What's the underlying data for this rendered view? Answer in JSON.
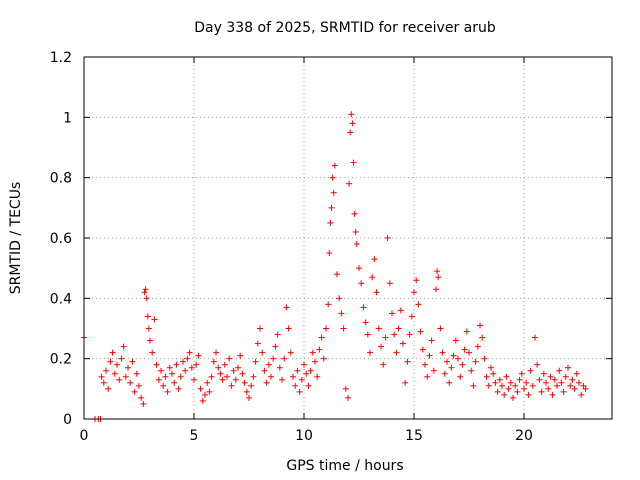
{
  "chart_data": {
    "type": "scatter",
    "title": "Day 338 of 2025, SRMTID for receiver arub",
    "xlabel": "GPS time / hours",
    "ylabel": "SRMTID / TECUs",
    "xlim": [
      0,
      24
    ],
    "ylim": [
      0,
      1.2
    ],
    "xticks": [
      0,
      5,
      10,
      15,
      20
    ],
    "xtick_labels": [
      "0",
      "5",
      "10",
      "15",
      "20"
    ],
    "yticks": [
      0,
      0.2,
      0.4,
      0.6,
      0.8,
      1.0,
      1.2
    ],
    "ytick_labels": [
      "0",
      "0.2",
      "0.4",
      "0.6",
      "0.8",
      "1",
      "1.2"
    ],
    "grid": true,
    "marker": "+",
    "color": "#ff0000",
    "series": [
      {
        "name": "SRMTID",
        "points": [
          [
            0.0,
            0.27
          ],
          [
            0.5,
            0.0
          ],
          [
            0.65,
            0.0
          ],
          [
            0.75,
            0.0
          ],
          [
            0.8,
            0.14
          ],
          [
            0.9,
            0.12
          ],
          [
            1.0,
            0.16
          ],
          [
            1.1,
            0.1
          ],
          [
            1.2,
            0.19
          ],
          [
            1.3,
            0.22
          ],
          [
            1.4,
            0.15
          ],
          [
            1.5,
            0.18
          ],
          [
            1.6,
            0.13
          ],
          [
            1.7,
            0.2
          ],
          [
            1.8,
            0.24
          ],
          [
            1.9,
            0.14
          ],
          [
            2.0,
            0.17
          ],
          [
            2.1,
            0.12
          ],
          [
            2.2,
            0.19
          ],
          [
            2.3,
            0.09
          ],
          [
            2.4,
            0.15
          ],
          [
            2.5,
            0.11
          ],
          [
            2.6,
            0.07
          ],
          [
            2.7,
            0.05
          ],
          [
            2.75,
            0.42
          ],
          [
            2.8,
            0.43
          ],
          [
            2.85,
            0.4
          ],
          [
            2.9,
            0.34
          ],
          [
            2.95,
            0.3
          ],
          [
            3.0,
            0.26
          ],
          [
            3.1,
            0.22
          ],
          [
            3.2,
            0.33
          ],
          [
            3.3,
            0.18
          ],
          [
            3.4,
            0.13
          ],
          [
            3.5,
            0.16
          ],
          [
            3.6,
            0.11
          ],
          [
            3.7,
            0.14
          ],
          [
            3.8,
            0.09
          ],
          [
            3.9,
            0.17
          ],
          [
            4.0,
            0.15
          ],
          [
            4.1,
            0.12
          ],
          [
            4.2,
            0.18
          ],
          [
            4.3,
            0.1
          ],
          [
            4.4,
            0.14
          ],
          [
            4.5,
            0.19
          ],
          [
            4.6,
            0.16
          ],
          [
            4.7,
            0.2
          ],
          [
            4.8,
            0.22
          ],
          [
            4.9,
            0.17
          ],
          [
            5.0,
            0.13
          ],
          [
            5.1,
            0.18
          ],
          [
            5.2,
            0.21
          ],
          [
            5.3,
            0.1
          ],
          [
            5.4,
            0.06
          ],
          [
            5.5,
            0.08
          ],
          [
            5.6,
            0.12
          ],
          [
            5.7,
            0.09
          ],
          [
            5.8,
            0.14
          ],
          [
            5.9,
            0.19
          ],
          [
            6.0,
            0.22
          ],
          [
            6.1,
            0.17
          ],
          [
            6.2,
            0.15
          ],
          [
            6.3,
            0.13
          ],
          [
            6.4,
            0.18
          ],
          [
            6.5,
            0.14
          ],
          [
            6.6,
            0.2
          ],
          [
            6.7,
            0.11
          ],
          [
            6.8,
            0.16
          ],
          [
            6.9,
            0.13
          ],
          [
            7.0,
            0.17
          ],
          [
            7.1,
            0.21
          ],
          [
            7.2,
            0.15
          ],
          [
            7.3,
            0.12
          ],
          [
            7.4,
            0.09
          ],
          [
            7.5,
            0.07
          ],
          [
            7.6,
            0.11
          ],
          [
            7.7,
            0.14
          ],
          [
            7.8,
            0.19
          ],
          [
            7.9,
            0.25
          ],
          [
            8.0,
            0.3
          ],
          [
            8.1,
            0.22
          ],
          [
            8.2,
            0.16
          ],
          [
            8.3,
            0.12
          ],
          [
            8.4,
            0.18
          ],
          [
            8.5,
            0.14
          ],
          [
            8.6,
            0.2
          ],
          [
            8.7,
            0.24
          ],
          [
            8.8,
            0.28
          ],
          [
            8.9,
            0.17
          ],
          [
            9.0,
            0.13
          ],
          [
            9.1,
            0.2
          ],
          [
            9.2,
            0.37
          ],
          [
            9.3,
            0.3
          ],
          [
            9.4,
            0.22
          ],
          [
            9.5,
            0.14
          ],
          [
            9.6,
            0.11
          ],
          [
            9.7,
            0.16
          ],
          [
            9.8,
            0.09
          ],
          [
            9.9,
            0.13
          ],
          [
            10.0,
            0.18
          ],
          [
            10.1,
            0.15
          ],
          [
            10.2,
            0.11
          ],
          [
            10.3,
            0.16
          ],
          [
            10.4,
            0.22
          ],
          [
            10.5,
            0.19
          ],
          [
            10.6,
            0.14
          ],
          [
            10.7,
            0.23
          ],
          [
            10.8,
            0.27
          ],
          [
            10.9,
            0.2
          ],
          [
            11.0,
            0.3
          ],
          [
            11.1,
            0.38
          ],
          [
            11.15,
            0.55
          ],
          [
            11.2,
            0.65
          ],
          [
            11.25,
            0.7
          ],
          [
            11.3,
            0.8
          ],
          [
            11.35,
            0.75
          ],
          [
            11.4,
            0.84
          ],
          [
            11.5,
            0.48
          ],
          [
            11.6,
            0.4
          ],
          [
            11.7,
            0.35
          ],
          [
            11.8,
            0.3
          ],
          [
            11.9,
            0.1
          ],
          [
            12.0,
            0.07
          ],
          [
            12.05,
            0.78
          ],
          [
            12.1,
            0.95
          ],
          [
            12.15,
            1.01
          ],
          [
            12.2,
            0.98
          ],
          [
            12.25,
            0.85
          ],
          [
            12.3,
            0.68
          ],
          [
            12.35,
            0.62
          ],
          [
            12.4,
            0.58
          ],
          [
            12.5,
            0.5
          ],
          [
            12.6,
            0.45
          ],
          [
            12.7,
            0.37
          ],
          [
            12.8,
            0.32
          ],
          [
            12.9,
            0.28
          ],
          [
            13.0,
            0.22
          ],
          [
            13.1,
            0.47
          ],
          [
            13.2,
            0.53
          ],
          [
            13.3,
            0.42
          ],
          [
            13.4,
            0.3
          ],
          [
            13.5,
            0.24
          ],
          [
            13.6,
            0.18
          ],
          [
            13.7,
            0.27
          ],
          [
            13.8,
            0.6
          ],
          [
            13.9,
            0.45
          ],
          [
            14.0,
            0.35
          ],
          [
            14.1,
            0.28
          ],
          [
            14.2,
            0.22
          ],
          [
            14.3,
            0.3
          ],
          [
            14.4,
            0.36
          ],
          [
            14.5,
            0.25
          ],
          [
            14.6,
            0.12
          ],
          [
            14.7,
            0.19
          ],
          [
            14.8,
            0.28
          ],
          [
            14.9,
            0.34
          ],
          [
            15.0,
            0.42
          ],
          [
            15.1,
            0.46
          ],
          [
            15.2,
            0.38
          ],
          [
            15.3,
            0.29
          ],
          [
            15.4,
            0.23
          ],
          [
            15.5,
            0.18
          ],
          [
            15.6,
            0.14
          ],
          [
            15.7,
            0.21
          ],
          [
            15.8,
            0.26
          ],
          [
            15.9,
            0.16
          ],
          [
            16.0,
            0.43
          ],
          [
            16.05,
            0.49
          ],
          [
            16.1,
            0.47
          ],
          [
            16.2,
            0.3
          ],
          [
            16.3,
            0.22
          ],
          [
            16.4,
            0.15
          ],
          [
            16.5,
            0.19
          ],
          [
            16.6,
            0.12
          ],
          [
            16.7,
            0.17
          ],
          [
            16.8,
            0.21
          ],
          [
            16.9,
            0.26
          ],
          [
            17.0,
            0.2
          ],
          [
            17.1,
            0.14
          ],
          [
            17.2,
            0.18
          ],
          [
            17.3,
            0.23
          ],
          [
            17.4,
            0.29
          ],
          [
            17.5,
            0.22
          ],
          [
            17.6,
            0.16
          ],
          [
            17.7,
            0.11
          ],
          [
            17.8,
            0.19
          ],
          [
            17.9,
            0.24
          ],
          [
            18.0,
            0.31
          ],
          [
            18.1,
            0.27
          ],
          [
            18.2,
            0.2
          ],
          [
            18.3,
            0.14
          ],
          [
            18.4,
            0.11
          ],
          [
            18.5,
            0.17
          ],
          [
            18.6,
            0.15
          ],
          [
            18.7,
            0.12
          ],
          [
            18.8,
            0.09
          ],
          [
            18.9,
            0.13
          ],
          [
            19.0,
            0.11
          ],
          [
            19.1,
            0.08
          ],
          [
            19.2,
            0.14
          ],
          [
            19.3,
            0.1
          ],
          [
            19.4,
            0.12
          ],
          [
            19.5,
            0.07
          ],
          [
            19.6,
            0.11
          ],
          [
            19.7,
            0.09
          ],
          [
            19.8,
            0.13
          ],
          [
            19.9,
            0.15
          ],
          [
            20.0,
            0.1
          ],
          [
            20.1,
            0.12
          ],
          [
            20.2,
            0.08
          ],
          [
            20.3,
            0.16
          ],
          [
            20.4,
            0.11
          ],
          [
            20.5,
            0.27
          ],
          [
            20.6,
            0.18
          ],
          [
            20.7,
            0.13
          ],
          [
            20.8,
            0.09
          ],
          [
            20.9,
            0.15
          ],
          [
            21.0,
            0.12
          ],
          [
            21.1,
            0.1
          ],
          [
            21.2,
            0.14
          ],
          [
            21.3,
            0.08
          ],
          [
            21.4,
            0.13
          ],
          [
            21.5,
            0.11
          ],
          [
            21.6,
            0.16
          ],
          [
            21.7,
            0.12
          ],
          [
            21.8,
            0.09
          ],
          [
            21.9,
            0.14
          ],
          [
            22.0,
            0.17
          ],
          [
            22.1,
            0.11
          ],
          [
            22.2,
            0.13
          ],
          [
            22.3,
            0.1
          ],
          [
            22.4,
            0.15
          ],
          [
            22.5,
            0.12
          ],
          [
            22.6,
            0.08
          ],
          [
            22.7,
            0.11
          ],
          [
            22.8,
            0.1
          ]
        ]
      }
    ]
  }
}
